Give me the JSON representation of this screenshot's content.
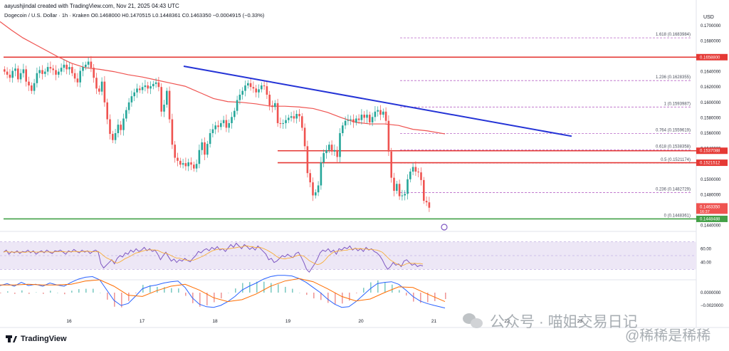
{
  "header": {
    "line1": "aayushjindal created with TradingView.com, Nov 21, 2025 04:43 UTC",
    "line2": "Dogecoin / U.S. Dollar · 1h · Kraken  O0.1468000  H0.1470515  L0.1448361  C0.1463350  −0.0004915 (−0.33%)"
  },
  "currency_label": "USD",
  "brand": "TradingView",
  "watermark": {
    "left": "公众号 · 喵姐交易日记",
    "right": "@稀稀是稀稀"
  },
  "colors": {
    "up": "#26a69a",
    "down": "#ef5350",
    "trendline": "#2433d6",
    "sma": "#ef5350",
    "horizontal": "#e53935",
    "support": "#43a047",
    "fib": "#9c27b0",
    "rsi": "#7e57c2",
    "rsi_band": "#ede7f6",
    "macd": "#2962ff",
    "signal": "#ff6d00"
  },
  "chart_data": {
    "type": "candlestick",
    "price_axis": {
      "min": 0.1435,
      "max": 0.171,
      "ticks": [
        {
          "v": 0.17,
          "label": "0.1700000"
        },
        {
          "v": 0.168,
          "label": "0.1680000"
        },
        {
          "v": 0.166,
          "label": "0.1660000"
        },
        {
          "v": 0.164,
          "label": "0.1640000"
        },
        {
          "v": 0.162,
          "label": "0.1620000"
        },
        {
          "v": 0.16,
          "label": "0.1600000"
        },
        {
          "v": 0.158,
          "label": "0.1580000"
        },
        {
          "v": 0.156,
          "label": "0.1560000"
        },
        {
          "v": 0.154,
          "label": "0.1540000"
        },
        {
          "v": 0.15,
          "label": "0.1500000"
        },
        {
          "v": 0.148,
          "label": "0.1480000"
        },
        {
          "v": 0.144,
          "label": "0.1440000"
        }
      ]
    },
    "time_axis": {
      "labels": [
        {
          "label": "16",
          "day": 16
        },
        {
          "label": "17",
          "day": 17
        },
        {
          "label": "18",
          "day": 18
        },
        {
          "label": "19",
          "day": 19
        },
        {
          "label": "20",
          "day": 20
        },
        {
          "label": "21",
          "day": 21
        },
        {
          "label": "22",
          "day": 22
        },
        {
          "label": "23",
          "day": 23
        }
      ]
    },
    "candles_close": [
      0.164,
      0.1636,
      0.1632,
      0.1641,
      0.1644,
      0.163,
      0.1638,
      0.1643,
      0.1627,
      0.1622,
      0.1615,
      0.1625,
      0.1638,
      0.1642,
      0.1637,
      0.164,
      0.1646,
      0.1644,
      0.1642,
      0.1636,
      0.164,
      0.1645,
      0.1649,
      0.1643,
      0.1646,
      0.1638,
      0.1631,
      0.1626,
      0.1641,
      0.1646,
      0.1649,
      0.1653,
      0.1645,
      0.1632,
      0.1618,
      0.1614,
      0.1627,
      0.16,
      0.1578,
      0.1559,
      0.1551,
      0.156,
      0.1571,
      0.1564,
      0.1579,
      0.159,
      0.16,
      0.1608,
      0.1613,
      0.1618,
      0.1616,
      0.162,
      0.1622,
      0.1618,
      0.1621,
      0.1624,
      0.1626,
      0.162,
      0.1588,
      0.1597,
      0.1615,
      0.1578,
      0.1545,
      0.1528,
      0.1524,
      0.1519,
      0.1521,
      0.1517,
      0.1522,
      0.1519,
      0.1514,
      0.152,
      0.1538,
      0.1548,
      0.1532,
      0.1546,
      0.156,
      0.1565,
      0.157,
      0.1568,
      0.1573,
      0.1577,
      0.1567,
      0.1573,
      0.1581,
      0.1589,
      0.1603,
      0.161,
      0.1615,
      0.1622,
      0.1625,
      0.162,
      0.1618,
      0.1613,
      0.1617,
      0.1622,
      0.1621,
      0.161,
      0.1596,
      0.1594,
      0.1599,
      0.1573,
      0.1572,
      0.1573,
      0.1577,
      0.158,
      0.1582,
      0.1579,
      0.1585,
      0.1582,
      0.1567,
      0.1543,
      0.1508,
      0.1496,
      0.1479,
      0.1483,
      0.1492,
      0.1522,
      0.1534,
      0.1538,
      0.1545,
      0.1536,
      0.1538,
      0.1529,
      0.156,
      0.157,
      0.1576,
      0.1577,
      0.1578,
      0.1574,
      0.1579,
      0.1577,
      0.1584,
      0.158,
      0.1584,
      0.1574,
      0.1581,
      0.1588,
      0.159,
      0.1584,
      0.1588,
      0.1576,
      0.1536,
      0.1502,
      0.1485,
      0.1494,
      0.1478,
      0.1479,
      0.1481,
      0.15,
      0.151,
      0.1516,
      0.151,
      0.1509,
      0.1499,
      0.1472,
      0.147,
      0.1463
    ],
    "sma": [
      [
        0,
        0.1705
      ],
      [
        16,
        0.1694
      ],
      [
        32,
        0.1684
      ],
      [
        48,
        0.1676
      ],
      [
        64,
        0.1668
      ],
      [
        80,
        0.166
      ],
      [
        100,
        0.1651
      ],
      [
        120,
        0.1645
      ],
      [
        140,
        0.1643
      ],
      [
        160,
        0.164
      ],
      [
        180,
        0.1636
      ],
      [
        200,
        0.1633
      ],
      [
        220,
        0.1629
      ],
      [
        240,
        0.1625
      ],
      [
        260,
        0.1621
      ],
      [
        280,
        0.1613
      ],
      [
        300,
        0.1605
      ],
      [
        320,
        0.1601
      ],
      [
        340,
        0.16
      ],
      [
        360,
        0.1598
      ],
      [
        380,
        0.1595
      ],
      [
        400,
        0.1595
      ],
      [
        420,
        0.1594
      ],
      [
        440,
        0.1592
      ],
      [
        460,
        0.1587
      ],
      [
        480,
        0.158
      ],
      [
        500,
        0.1574
      ],
      [
        520,
        0.1572
      ],
      [
        540,
        0.1572
      ],
      [
        560,
        0.157
      ],
      [
        580,
        0.1565
      ],
      [
        600,
        0.1563
      ],
      [
        625,
        0.1559
      ]
    ],
    "horizontal_levels": [
      {
        "price": 0.16588,
        "label": "0.1658800",
        "type": "resistance",
        "x_start": 5
      },
      {
        "price": 0.1537088,
        "label": "0.1537088",
        "type": "resistance",
        "x_start": 390
      },
      {
        "price": 0.1521512,
        "label": "0.1521512",
        "type": "resistance",
        "x_start": 390
      },
      {
        "price": 0.1448488,
        "label": "0.1448488",
        "type": "support",
        "x_start": 5
      }
    ],
    "trendline": [
      {
        "x": 258,
        "price": 0.1647
      },
      {
        "x": 803,
        "price": 0.1556
      }
    ],
    "fib_levels": [
      {
        "ratio": "1.618",
        "price": 0.1683984,
        "label": "1.618 (0.1683984)"
      },
      {
        "ratio": "1.236",
        "price": 0.1628355,
        "label": "1.236 (0.1628355)"
      },
      {
        "ratio": "1",
        "price": 0.1593987,
        "label": "1 (0.1593987)"
      },
      {
        "ratio": "0.764",
        "price": 0.1559619,
        "label": "0.764 (0.1559619)"
      },
      {
        "ratio": "0.618",
        "price": 0.1538358,
        "label": "0.618 (0.1538358)"
      },
      {
        "ratio": "0.5",
        "price": 0.1521174,
        "label": "0.5 (0.1521174)"
      },
      {
        "ratio": "0.236",
        "price": 0.1482729,
        "label": "0.236 (0.1482729)"
      },
      {
        "ratio": "0",
        "price": 0.1448361,
        "label": "0 (0.1448361)"
      }
    ],
    "current_price": {
      "label": "0.1463350",
      "sublabel": "16:37"
    },
    "rsi": {
      "axis_ticks": [
        {
          "v": 60,
          "label": "60.00"
        },
        {
          "v": 40,
          "label": "40.00"
        }
      ],
      "band": [
        30,
        70
      ],
      "values": [
        55,
        58,
        52,
        56,
        54,
        57,
        53,
        56,
        55,
        58,
        54,
        57,
        52,
        55,
        57,
        54,
        58,
        55,
        53,
        57,
        56,
        58,
        55,
        52,
        57,
        55,
        59,
        56,
        54,
        58,
        55,
        57,
        53,
        56,
        58,
        55,
        38,
        32,
        36,
        40,
        44,
        38,
        46,
        50,
        48,
        54,
        52,
        58,
        55,
        60,
        56,
        58,
        62,
        57,
        60,
        56,
        58,
        52,
        44,
        50,
        55,
        48,
        42,
        45,
        40,
        44,
        42,
        46,
        43,
        41,
        46,
        50,
        56,
        54,
        58,
        60,
        57,
        62,
        59,
        63,
        58,
        60,
        56,
        61,
        66,
        62,
        68,
        64,
        60,
        66,
        63,
        59,
        62,
        58,
        64,
        60,
        56,
        52,
        44,
        46,
        40,
        42,
        46,
        50,
        48,
        52,
        49,
        47,
        53,
        55,
        48,
        40,
        30,
        26,
        32,
        38,
        45,
        54,
        58,
        56,
        60,
        55,
        58,
        52,
        60,
        58,
        62,
        60,
        64,
        58,
        61,
        57,
        60,
        56,
        62,
        58,
        60,
        56,
        54,
        50,
        44,
        36,
        30,
        34,
        40,
        36,
        38,
        34,
        42,
        44,
        40,
        36,
        38,
        34,
        36,
        35
      ]
    },
    "macd": {
      "axis_ticks": [
        {
          "v": 0.0,
          "label": "0.0000000"
        },
        {
          "v": -0.002,
          "label": "−0.0020000"
        }
      ],
      "values": [
        [
          0,
          0.0011
        ],
        [
          10,
          0.0014
        ],
        [
          20,
          0.001
        ],
        [
          30,
          0.0016
        ],
        [
          40,
          0.0011
        ],
        [
          50,
          0.0013
        ],
        [
          60,
          0.001
        ],
        [
          70,
          0.0015
        ],
        [
          80,
          0.0012
        ],
        [
          90,
          0.001
        ],
        [
          100,
          0.0016
        ],
        [
          110,
          0.0021
        ],
        [
          120,
          0.0024
        ],
        [
          130,
          0.0025
        ],
        [
          140,
          0.002
        ],
        [
          150,
          0.0004
        ],
        [
          160,
          -0.0012
        ],
        [
          170,
          -0.002
        ],
        [
          180,
          -0.0017
        ],
        [
          190,
          -0.0006
        ],
        [
          200,
          0.0006
        ],
        [
          210,
          0.001
        ],
        [
          220,
          0.0012
        ],
        [
          230,
          0.0015
        ],
        [
          240,
          0.0017
        ],
        [
          250,
          0.0018
        ],
        [
          260,
          0.0008
        ],
        [
          270,
          -0.0008
        ],
        [
          280,
          -0.0018
        ],
        [
          290,
          -0.0022
        ],
        [
          300,
          -0.0023
        ],
        [
          310,
          -0.002
        ],
        [
          320,
          -0.0014
        ],
        [
          330,
          -0.0006
        ],
        [
          340,
          0.0004
        ],
        [
          350,
          0.001
        ],
        [
          360,
          0.0015
        ],
        [
          370,
          0.0021
        ],
        [
          380,
          0.0025
        ],
        [
          390,
          0.0027
        ],
        [
          400,
          0.0027
        ],
        [
          410,
          0.0026
        ],
        [
          420,
          0.0022
        ],
        [
          430,
          0.0016
        ],
        [
          440,
          0.0008
        ],
        [
          450,
          0.0
        ],
        [
          460,
          -0.001
        ],
        [
          470,
          -0.0018
        ],
        [
          480,
          -0.0023
        ],
        [
          490,
          -0.0022
        ],
        [
          500,
          -0.0014
        ],
        [
          510,
          -0.0004
        ],
        [
          520,
          0.0006
        ],
        [
          530,
          0.0014
        ],
        [
          540,
          0.0016
        ],
        [
          550,
          0.0017
        ],
        [
          560,
          0.0013
        ],
        [
          570,
          0.0004
        ],
        [
          580,
          -0.0006
        ],
        [
          590,
          -0.0013
        ],
        [
          600,
          -0.0017
        ],
        [
          610,
          -0.002
        ],
        [
          625,
          -0.0024
        ]
      ],
      "signal": [
        [
          0,
          0.0012
        ],
        [
          20,
          0.0012
        ],
        [
          40,
          0.0013
        ],
        [
          60,
          0.0012
        ],
        [
          80,
          0.0012
        ],
        [
          100,
          0.0013
        ],
        [
          120,
          0.0018
        ],
        [
          140,
          0.002
        ],
        [
          160,
          0.001
        ],
        [
          180,
          -0.0004
        ],
        [
          200,
          -0.0006
        ],
        [
          220,
          0.0003
        ],
        [
          240,
          0.001
        ],
        [
          260,
          0.0013
        ],
        [
          280,
          0.0004
        ],
        [
          300,
          -0.0008
        ],
        [
          320,
          -0.0014
        ],
        [
          340,
          -0.0011
        ],
        [
          360,
          -0.0002
        ],
        [
          380,
          0.001
        ],
        [
          400,
          0.0018
        ],
        [
          420,
          0.0022
        ],
        [
          440,
          0.0017
        ],
        [
          460,
          0.0006
        ],
        [
          480,
          -0.0006
        ],
        [
          500,
          -0.0013
        ],
        [
          520,
          -0.001
        ],
        [
          540,
          0.0
        ],
        [
          560,
          0.0009
        ],
        [
          580,
          0.0008
        ],
        [
          600,
          -0.0002
        ],
        [
          625,
          -0.0014
        ]
      ]
    }
  }
}
